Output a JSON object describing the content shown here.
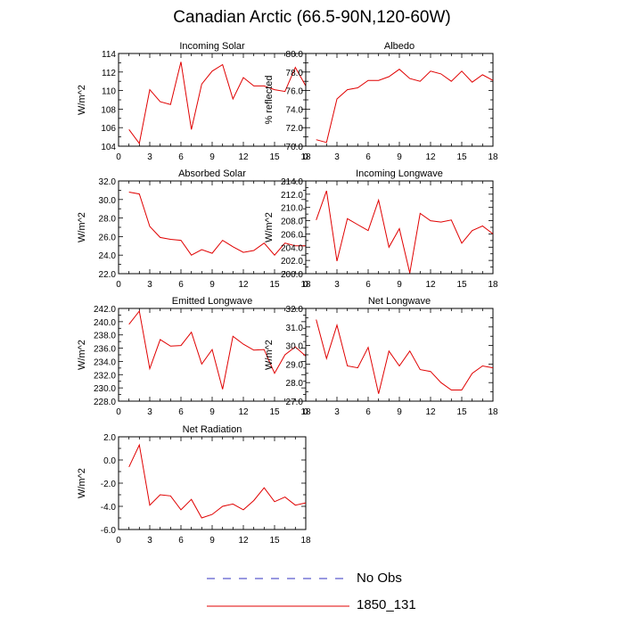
{
  "title": "Canadian Arctic (66.5-90N,120-60W)",
  "colors": {
    "model": "#e00000",
    "obs": "#3030c0",
    "axis": "#000000"
  },
  "legend": [
    {
      "label": "No Obs",
      "style": "dashed",
      "color": "#3030c0"
    },
    {
      "label": "1850_131",
      "style": "solid",
      "color": "#e00000"
    }
  ],
  "chart_data": [
    {
      "type": "line",
      "title": "Incoming Solar",
      "ylabel": "W/m^2",
      "xlim": [
        0,
        18
      ],
      "xticks": [
        0,
        3,
        6,
        9,
        12,
        15,
        18
      ],
      "ylim": [
        104,
        114
      ],
      "yticks": [
        "104",
        "106",
        "108",
        "110",
        "112",
        "114"
      ],
      "series": [
        {
          "name": "1850_131",
          "x": [
            1,
            2,
            3,
            4,
            5,
            6,
            7,
            8,
            9,
            10,
            11,
            12,
            13,
            14,
            15,
            16,
            17,
            18
          ],
          "values": [
            105.8,
            104.3,
            110.1,
            108.8,
            108.5,
            113.1,
            105.8,
            110.7,
            112.1,
            112.8,
            109.1,
            111.4,
            110.5,
            110.5,
            110.1,
            109.9,
            112.5,
            110.5
          ]
        }
      ]
    },
    {
      "type": "line",
      "title": "Albedo",
      "ylabel": "% reflected",
      "xlim": [
        0,
        18
      ],
      "xticks": [
        0,
        3,
        6,
        9,
        12,
        15,
        18
      ],
      "ylim": [
        70,
        80
      ],
      "yticks": [
        "70.0",
        "72.0",
        "74.0",
        "76.0",
        "78.0",
        "80.0"
      ],
      "series": [
        {
          "name": "1850_131",
          "x": [
            1,
            2,
            3,
            4,
            5,
            6,
            7,
            8,
            9,
            10,
            11,
            12,
            13,
            14,
            15,
            16,
            17,
            18
          ],
          "values": [
            70.7,
            70.4,
            75.1,
            76.1,
            76.3,
            77.1,
            77.1,
            77.5,
            78.3,
            77.3,
            77.0,
            78.1,
            77.8,
            77.0,
            78.1,
            76.9,
            77.7,
            77.1
          ]
        }
      ]
    },
    {
      "type": "line",
      "title": "Absorbed Solar",
      "ylabel": "W/m^2",
      "xlim": [
        0,
        18
      ],
      "xticks": [
        0,
        3,
        6,
        9,
        12,
        15,
        18
      ],
      "ylim": [
        22,
        32
      ],
      "yticks": [
        "22.0",
        "24.0",
        "26.0",
        "28.0",
        "30.0",
        "32.0"
      ],
      "series": [
        {
          "name": "1850_131",
          "x": [
            1,
            2,
            3,
            4,
            5,
            6,
            7,
            8,
            9,
            10,
            11,
            12,
            13,
            14,
            15,
            16,
            17,
            18
          ],
          "values": [
            30.8,
            30.6,
            27.1,
            25.9,
            25.7,
            25.6,
            24.0,
            24.6,
            24.2,
            25.6,
            24.9,
            24.3,
            24.5,
            25.3,
            24.0,
            25.3,
            25.0,
            25.0
          ]
        }
      ]
    },
    {
      "type": "line",
      "title": "Incoming Longwave",
      "ylabel": "W/m^2",
      "xlim": [
        0,
        18
      ],
      "xticks": [
        0,
        3,
        6,
        9,
        12,
        15,
        18
      ],
      "ylim": [
        200,
        214
      ],
      "yticks": [
        "200.0",
        "202.0",
        "204.0",
        "206.0",
        "208.0",
        "210.0",
        "212.0",
        "214.0"
      ],
      "series": [
        {
          "name": "1850_131",
          "x": [
            1,
            2,
            3,
            4,
            5,
            6,
            7,
            8,
            9,
            10,
            11,
            12,
            13,
            14,
            15,
            16,
            17,
            18
          ],
          "values": [
            208.1,
            212.5,
            201.9,
            208.3,
            207.4,
            206.5,
            211.1,
            204.0,
            206.8,
            200.1,
            209.1,
            208.0,
            207.8,
            208.1,
            204.6,
            206.5,
            207.2,
            206.0
          ]
        }
      ]
    },
    {
      "type": "line",
      "title": "Emitted Longwave",
      "ylabel": "W/m^2",
      "xlim": [
        0,
        18
      ],
      "xticks": [
        0,
        3,
        6,
        9,
        12,
        15,
        18
      ],
      "ylim": [
        228,
        242
      ],
      "yticks": [
        "228.0",
        "230.0",
        "232.0",
        "234.0",
        "236.0",
        "238.0",
        "240.0",
        "242.0"
      ],
      "series": [
        {
          "name": "1850_131",
          "x": [
            1,
            2,
            3,
            4,
            5,
            6,
            7,
            8,
            9,
            10,
            11,
            12,
            13,
            14,
            15,
            16,
            17,
            18
          ],
          "values": [
            239.6,
            241.6,
            232.9,
            237.3,
            236.3,
            236.4,
            238.4,
            233.6,
            235.8,
            229.8,
            237.8,
            236.6,
            235.7,
            235.8,
            232.2,
            235.0,
            236.2,
            234.8
          ]
        }
      ]
    },
    {
      "type": "line",
      "title": "Net Longwave",
      "ylabel": "W/m^2",
      "xlim": [
        0,
        18
      ],
      "xticks": [
        0,
        3,
        6,
        9,
        12,
        15,
        18
      ],
      "ylim": [
        27,
        32
      ],
      "yticks": [
        "27.0",
        "28.0",
        "29.0",
        "30.0",
        "31.0",
        "32.0"
      ],
      "series": [
        {
          "name": "1850_131",
          "x": [
            1,
            2,
            3,
            4,
            5,
            6,
            7,
            8,
            9,
            10,
            11,
            12,
            13,
            14,
            15,
            16,
            17,
            18
          ],
          "values": [
            31.4,
            29.3,
            31.1,
            28.9,
            28.8,
            29.9,
            27.4,
            29.7,
            28.9,
            29.7,
            28.7,
            28.6,
            28.0,
            27.6,
            27.6,
            28.5,
            28.9,
            28.8
          ]
        }
      ]
    },
    {
      "type": "line",
      "title": "Net Radiation",
      "ylabel": "W/m^2",
      "xlim": [
        0,
        18
      ],
      "xticks": [
        0,
        3,
        6,
        9,
        12,
        15,
        18
      ],
      "ylim": [
        -6,
        2
      ],
      "yticks": [
        "-6.0",
        "-4.0",
        "-2.0",
        "0.0",
        "2.0"
      ],
      "series": [
        {
          "name": "1850_131",
          "x": [
            1,
            2,
            3,
            4,
            5,
            6,
            7,
            8,
            9,
            10,
            11,
            12,
            13,
            14,
            15,
            16,
            17,
            18
          ],
          "values": [
            -0.6,
            1.3,
            -3.9,
            -3.0,
            -3.1,
            -4.3,
            -3.4,
            -5.0,
            -4.7,
            -4.0,
            -3.8,
            -4.3,
            -3.5,
            -2.4,
            -3.6,
            -3.2,
            -3.9,
            -3.7
          ]
        }
      ]
    }
  ]
}
